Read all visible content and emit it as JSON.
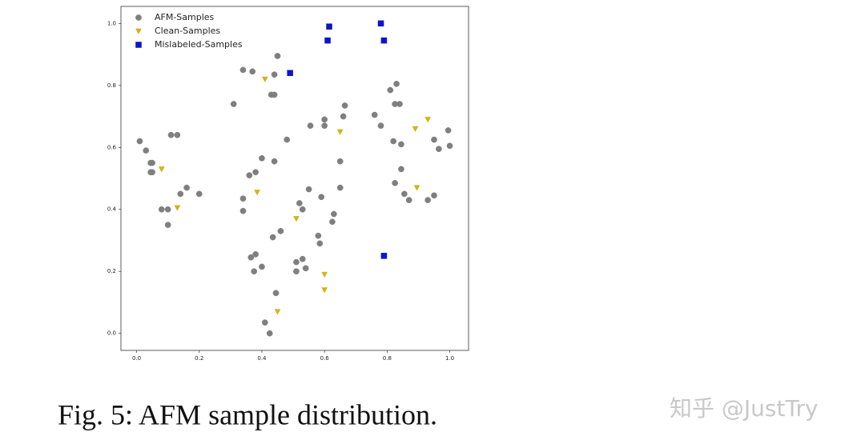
{
  "chart_data": {
    "type": "scatter",
    "caption": "Fig. 5: AFM sample distribution.",
    "watermark": "知乎 @JustTry",
    "legend": "upper left",
    "xlim": [
      -0.05,
      1.06
    ],
    "ylim": [
      -0.055,
      1.055
    ],
    "xticks": [
      {
        "value": 0,
        "label": "0.0"
      },
      0.2,
      0.4,
      0.6,
      0.8,
      {
        "value": 1,
        "label": "1.0"
      }
    ],
    "yticks": [
      {
        "value": 0,
        "label": "0.0"
      },
      0.2,
      0.4,
      0.6,
      0.8,
      {
        "value": 1,
        "label": "1.0"
      }
    ],
    "series": [
      {
        "name": "AFM-Samples",
        "color": "#7f7f7f",
        "marker": "o",
        "x": [
          0.01,
          0.03,
          0.045,
          0.05,
          0.045,
          0.05,
          0.11,
          0.13,
          0.08,
          0.1,
          0.1,
          0.14,
          0.16,
          0.2,
          0.31,
          0.34,
          0.37,
          0.44,
          0.45,
          0.43,
          0.44,
          0.48,
          0.4,
          0.44,
          0.36,
          0.38,
          0.34,
          0.34,
          0.555,
          0.6,
          0.6,
          0.66,
          0.665,
          0.65,
          0.65,
          0.55,
          0.52,
          0.53,
          0.59,
          0.63,
          0.625,
          0.58,
          0.585,
          0.46,
          0.435,
          0.365,
          0.38,
          0.4,
          0.375,
          0.51,
          0.53,
          0.51,
          0.54,
          0.445,
          0.41,
          0.425,
          0.76,
          0.78,
          0.81,
          0.83,
          0.825,
          0.84,
          0.82,
          0.845,
          0.845,
          0.825,
          0.855,
          0.87,
          0.93,
          0.95,
          0.95,
          0.965,
          0.995,
          1.0
        ],
        "values": [
          0.62,
          0.59,
          0.55,
          0.55,
          0.52,
          0.52,
          0.64,
          0.64,
          0.4,
          0.4,
          0.35,
          0.45,
          0.47,
          0.45,
          0.74,
          0.85,
          0.845,
          0.835,
          0.895,
          0.77,
          0.77,
          0.625,
          0.565,
          0.555,
          0.51,
          0.52,
          0.435,
          0.395,
          0.67,
          0.67,
          0.69,
          0.7,
          0.735,
          0.555,
          0.47,
          0.465,
          0.42,
          0.4,
          0.44,
          0.385,
          0.36,
          0.315,
          0.29,
          0.33,
          0.31,
          0.245,
          0.255,
          0.215,
          0.2,
          0.23,
          0.24,
          0.2,
          0.21,
          0.13,
          0.035,
          0.0,
          0.705,
          0.67,
          0.785,
          0.805,
          0.74,
          0.74,
          0.62,
          0.61,
          0.53,
          0.485,
          0.45,
          0.43,
          0.43,
          0.445,
          0.625,
          0.595,
          0.655,
          0.605
        ]
      },
      {
        "name": "Clean-Samples",
        "color": "#d4b21a",
        "marker": "v",
        "x": [
          0.41,
          0.08,
          0.13,
          0.385,
          0.51,
          0.65,
          0.6,
          0.6,
          0.45,
          0.89,
          0.93,
          0.895
        ],
        "values": [
          0.82,
          0.53,
          0.405,
          0.455,
          0.37,
          0.65,
          0.19,
          0.14,
          0.07,
          0.66,
          0.69,
          0.47
        ]
      },
      {
        "name": "Mislabeled-Samples",
        "color": "#0a14c8",
        "marker": "s",
        "x": [
          0.49,
          0.615,
          0.61,
          0.78,
          0.79,
          0.79
        ],
        "values": [
          0.84,
          0.99,
          0.945,
          1.0,
          0.945,
          0.25
        ]
      }
    ]
  }
}
